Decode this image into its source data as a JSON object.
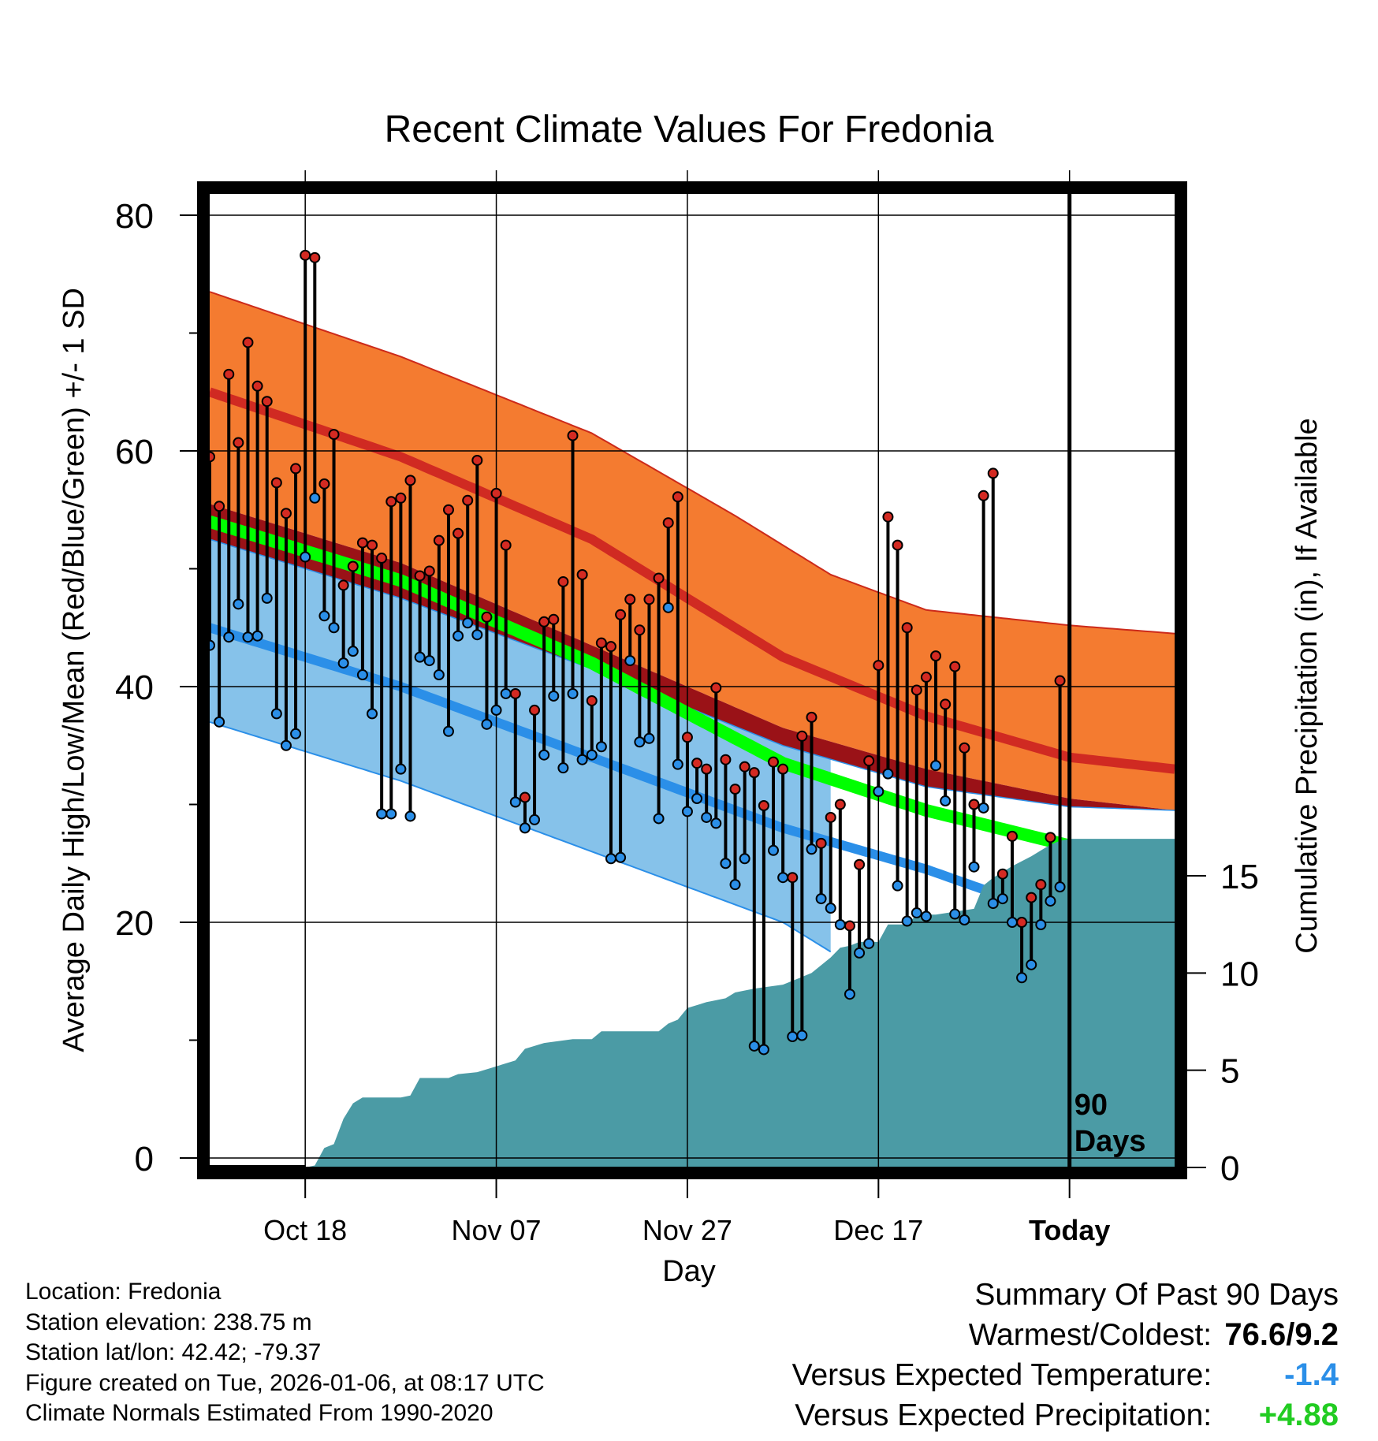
{
  "chart_data": {
    "type": "climate-timeseries",
    "title": "Recent Climate Values For Fredonia",
    "xlabel": "Day",
    "ylabel_left": "Average Daily High/Low/Mean (Red/Blue/Green) +/- 1 SD",
    "ylabel_right": "Cumulative Precipitation (in), If Available",
    "x_days": 101,
    "today_day": 90,
    "today_annotation": [
      "90",
      "Days"
    ],
    "ylim_left": [
      0,
      80
    ],
    "ylim_right": [
      0,
      15
    ],
    "yticks_left": [
      0,
      20,
      40,
      60,
      80
    ],
    "yticks_right": [
      0,
      5,
      10,
      15
    ],
    "xticks": [
      {
        "day": 10,
        "label": "Oct 18"
      },
      {
        "day": 30,
        "label": "Nov 07"
      },
      {
        "day": 50,
        "label": "Nov 27"
      },
      {
        "day": 70,
        "label": "Dec 17"
      },
      {
        "day": 90,
        "label": "Today"
      }
    ],
    "normals": {
      "high_mean": [
        [
          0,
          65.0
        ],
        [
          20,
          59.5
        ],
        [
          40,
          52.5
        ],
        [
          60,
          42.5
        ],
        [
          75,
          37.5
        ],
        [
          90,
          34.0
        ],
        [
          101,
          33.0
        ]
      ],
      "high_plus_sd": [
        [
          0,
          73.5
        ],
        [
          20,
          68.0
        ],
        [
          40,
          61.5
        ],
        [
          55,
          54.5
        ],
        [
          65,
          49.5
        ],
        [
          75,
          46.5
        ],
        [
          90,
          45.2
        ],
        [
          101,
          44.5
        ]
      ],
      "high_minus_sd": [
        [
          0,
          55.5
        ],
        [
          20,
          50.5
        ],
        [
          40,
          43.5
        ],
        [
          60,
          36.5
        ],
        [
          75,
          33.0
        ],
        [
          90,
          30.5
        ],
        [
          101,
          29.5
        ]
      ],
      "low_mean": [
        [
          0,
          45.0
        ],
        [
          20,
          40.0
        ],
        [
          40,
          34.0
        ],
        [
          60,
          28.0
        ],
        [
          75,
          24.5
        ],
        [
          82,
          22.5
        ]
      ],
      "low_plus_sd": [
        [
          0,
          52.5
        ],
        [
          20,
          47.5
        ],
        [
          40,
          41.5
        ],
        [
          60,
          35.0
        ],
        [
          75,
          31.5
        ],
        [
          90,
          29.8
        ],
        [
          101,
          29.5
        ]
      ],
      "low_minus_sd": [
        [
          0,
          37.0
        ],
        [
          20,
          32.0
        ],
        [
          40,
          26.0
        ],
        [
          60,
          20.0
        ],
        [
          65,
          17.5
        ]
      ],
      "mean": [
        [
          0,
          54.0
        ],
        [
          20,
          49.0
        ],
        [
          40,
          42.0
        ],
        [
          60,
          33.5
        ],
        [
          75,
          29.5
        ],
        [
          90,
          26.5
        ],
        [
          101,
          25.5
        ]
      ]
    },
    "precip_cumulative": [
      [
        0,
        0
      ],
      [
        10,
        0
      ],
      [
        11,
        0.1
      ],
      [
        12,
        1.0
      ],
      [
        13,
        1.2
      ],
      [
        14,
        2.5
      ],
      [
        15,
        3.3
      ],
      [
        16,
        3.6
      ],
      [
        20,
        3.6
      ],
      [
        21,
        3.7
      ],
      [
        22,
        4.6
      ],
      [
        25,
        4.6
      ],
      [
        26,
        4.8
      ],
      [
        28,
        4.9
      ],
      [
        30,
        5.2
      ],
      [
        32,
        5.5
      ],
      [
        33,
        6.1
      ],
      [
        35,
        6.4
      ],
      [
        38,
        6.6
      ],
      [
        40,
        6.6
      ],
      [
        41,
        7.0
      ],
      [
        47,
        7.0
      ],
      [
        48,
        7.4
      ],
      [
        49,
        7.6
      ],
      [
        50,
        8.2
      ],
      [
        52,
        8.5
      ],
      [
        54,
        8.7
      ],
      [
        55,
        9.0
      ],
      [
        57,
        9.2
      ],
      [
        60,
        9.4
      ],
      [
        62,
        9.8
      ],
      [
        63,
        10.0
      ],
      [
        65,
        10.8
      ],
      [
        66,
        11.3
      ],
      [
        67,
        11.4
      ],
      [
        68,
        11.6
      ],
      [
        70,
        11.6
      ],
      [
        71,
        12.5
      ],
      [
        73,
        12.5
      ],
      [
        74,
        13.0
      ],
      [
        76,
        13.0
      ],
      [
        80,
        13.3
      ],
      [
        81,
        14.5
      ],
      [
        82,
        14.9
      ],
      [
        84,
        15.5
      ],
      [
        86,
        16.0
      ],
      [
        87,
        16.3
      ],
      [
        88,
        16.6
      ],
      [
        89,
        16.8
      ],
      [
        90,
        16.9
      ],
      [
        101,
        16.9
      ]
    ],
    "daily_high_low": [
      [
        59.5,
        43.5
      ],
      [
        55.3,
        37.0
      ],
      [
        66.5,
        44.2
      ],
      [
        60.7,
        47.0
      ],
      [
        69.2,
        44.2
      ],
      [
        65.5,
        44.3
      ],
      [
        64.2,
        47.5
      ],
      [
        57.3,
        37.7
      ],
      [
        54.7,
        35.0
      ],
      [
        58.5,
        36.0
      ],
      [
        76.6,
        51.0
      ],
      [
        76.4,
        56.0
      ],
      [
        57.2,
        46.0
      ],
      [
        61.4,
        45.0
      ],
      [
        48.6,
        42.0
      ],
      [
        50.2,
        43.0
      ],
      [
        52.2,
        41.0
      ],
      [
        52.0,
        37.7
      ],
      [
        50.9,
        29.2
      ],
      [
        55.7,
        29.2
      ],
      [
        56.0,
        33.0
      ],
      [
        57.5,
        29.0
      ],
      [
        49.4,
        42.5
      ],
      [
        49.8,
        42.2
      ],
      [
        52.4,
        41.0
      ],
      [
        55.0,
        36.2
      ],
      [
        53.0,
        44.3
      ],
      [
        55.8,
        45.4
      ],
      [
        59.2,
        44.4
      ],
      [
        45.9,
        36.8
      ],
      [
        56.4,
        38.0
      ],
      [
        52.0,
        39.4
      ],
      [
        39.4,
        30.2
      ],
      [
        30.6,
        28.0
      ],
      [
        38.0,
        28.7
      ],
      [
        45.5,
        34.2
      ],
      [
        45.7,
        39.2
      ],
      [
        48.9,
        33.1
      ],
      [
        61.3,
        39.4
      ],
      [
        49.5,
        33.8
      ],
      [
        38.8,
        34.2
      ],
      [
        43.7,
        34.9
      ],
      [
        43.4,
        25.4
      ],
      [
        46.1,
        25.5
      ],
      [
        47.4,
        42.2
      ],
      [
        44.8,
        35.3
      ],
      [
        47.4,
        35.6
      ],
      [
        49.2,
        28.8
      ],
      [
        53.9,
        46.7
      ],
      [
        56.1,
        33.4
      ],
      [
        35.7,
        29.4
      ],
      [
        33.5,
        30.5
      ],
      [
        33.0,
        28.9
      ],
      [
        39.9,
        28.4
      ],
      [
        33.8,
        25.0
      ],
      [
        31.3,
        23.2
      ],
      [
        33.2,
        25.4
      ],
      [
        32.7,
        9.5
      ],
      [
        29.9,
        9.2
      ],
      [
        33.6,
        26.1
      ],
      [
        33.0,
        23.8
      ],
      [
        23.8,
        10.3
      ],
      [
        35.8,
        10.4
      ],
      [
        37.4,
        26.2
      ],
      [
        26.7,
        22.0
      ],
      [
        28.9,
        21.2
      ],
      [
        30.0,
        19.8
      ],
      [
        19.7,
        13.9
      ],
      [
        24.9,
        17.4
      ],
      [
        33.7,
        18.2
      ],
      [
        41.8,
        31.1
      ],
      [
        54.4,
        32.6
      ],
      [
        52.0,
        23.1
      ],
      [
        45.0,
        20.1
      ],
      [
        39.7,
        20.8
      ],
      [
        40.8,
        20.5
      ],
      [
        42.6,
        33.3
      ],
      [
        38.5,
        30.3
      ],
      [
        41.7,
        20.7
      ],
      [
        34.8,
        20.2
      ],
      [
        30.0,
        24.7
      ],
      [
        56.2,
        29.7
      ],
      [
        58.1,
        21.6
      ],
      [
        24.1,
        22.0
      ],
      [
        27.3,
        20.0
      ],
      [
        20.0,
        15.3
      ],
      [
        22.1,
        16.4
      ],
      [
        23.2,
        19.8
      ],
      [
        27.2,
        21.8
      ],
      [
        40.5,
        23.0
      ]
    ]
  },
  "footer": {
    "location": "Location: Fredonia",
    "elevation": "Station elevation: 238.75 m",
    "latlon": "Station lat/lon: 42.42; -79.37",
    "created": "Figure created on Tue, 2026-01-06, at 08:17 UTC",
    "normals": "Climate Normals Estimated From 1990-2020"
  },
  "summary": {
    "title": "Summary Of Past 90 Days",
    "warmest_coldest_label": "Warmest/Coldest:",
    "warmest_coldest_value": "76.6/9.2",
    "temp_label": "Versus Expected Temperature:",
    "temp_value": "-1.4",
    "precip_label": "Versus Expected Precipitation:",
    "precip_value": "+4.88"
  },
  "colors": {
    "high_band": "#f47b30",
    "high_band_edge": "#cc2a1a",
    "high_mean": "#d02a22",
    "high_below": "#9a1217",
    "low_band": "#86c2ea",
    "low_edge": "#2b8fe8",
    "low_mean": "#2b8fe8",
    "mean": "#00ff00",
    "precip": "#4b9ba5",
    "high_dot": "#d42a22",
    "low_dot": "#2b8fe8",
    "summary_blue": "#2b8fe8",
    "summary_green": "#22cc22"
  }
}
